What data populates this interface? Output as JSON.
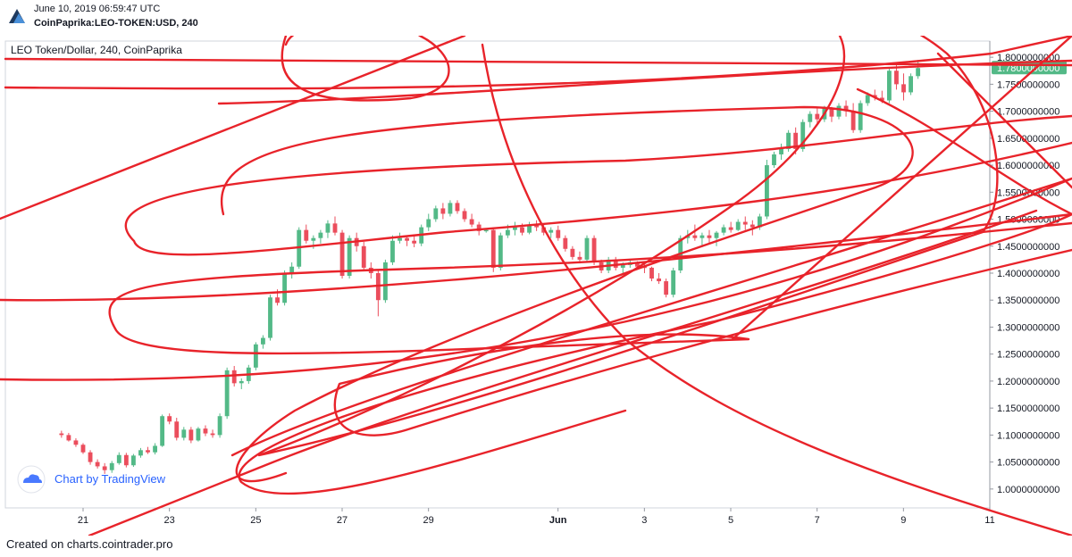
{
  "header": {
    "timestamp": "June 10, 2019 06:59:47 UTC",
    "symbol": "CoinPaprika:LEO-TOKEN:USD, 240"
  },
  "footer": {
    "credit": "Created on charts.cointrader.pro"
  },
  "watermark": {
    "label": "Chart by TradingView"
  },
  "colors": {
    "up": "#53b987",
    "down": "#eb4d5c",
    "scribble": "#e8232a",
    "price_tag": "#53b987",
    "axis": "#9598a1",
    "grid_border": "#d1d4dc"
  },
  "chart_data": {
    "type": "candlestick",
    "title": "LEO Token/Dollar, 240, CoinPaprika",
    "xlabel": "",
    "ylabel": "",
    "ylim": [
      0.965,
      1.83
    ],
    "x_range_days": [
      19.2,
      42.0
    ],
    "y_ticks": [
      "1.8000000000",
      "1.7500000000",
      "1.7000000000",
      "1.6500000000",
      "1.6000000000",
      "1.5500000000",
      "1.5000000000",
      "1.4500000000",
      "1.4000000000",
      "1.3500000000",
      "1.3000000000",
      "1.2500000000",
      "1.2000000000",
      "1.1500000000",
      "1.1000000000",
      "1.0500000000",
      "1.0000000000"
    ],
    "x_ticks": [
      {
        "label": "21",
        "day": 21
      },
      {
        "label": "23",
        "day": 23
      },
      {
        "label": "25",
        "day": 25
      },
      {
        "label": "27",
        "day": 27
      },
      {
        "label": "29",
        "day": 29
      },
      {
        "label": "Jun",
        "day": 32
      },
      {
        "label": "3",
        "day": 34
      },
      {
        "label": "5",
        "day": 36
      },
      {
        "label": "7",
        "day": 38
      },
      {
        "label": "9",
        "day": 40
      },
      {
        "label": "11",
        "day": 42
      }
    ],
    "last_price": "1.7800000000",
    "last_price_value": 1.78,
    "grid": false,
    "candles_start_day": 20.5,
    "candle_interval_days": 0.1667,
    "ohlc": [
      [
        1.103,
        1.108,
        1.095,
        1.1
      ],
      [
        1.1,
        1.104,
        1.088,
        1.09
      ],
      [
        1.09,
        1.094,
        1.078,
        1.082
      ],
      [
        1.082,
        1.085,
        1.065,
        1.068
      ],
      [
        1.068,
        1.072,
        1.045,
        1.05
      ],
      [
        1.05,
        1.055,
        1.038,
        1.042
      ],
      [
        1.042,
        1.048,
        1.028,
        1.035
      ],
      [
        1.035,
        1.052,
        1.03,
        1.048
      ],
      [
        1.048,
        1.068,
        1.045,
        1.063
      ],
      [
        1.063,
        1.067,
        1.04,
        1.044
      ],
      [
        1.044,
        1.065,
        1.041,
        1.062
      ],
      [
        1.062,
        1.076,
        1.058,
        1.072
      ],
      [
        1.072,
        1.078,
        1.065,
        1.068
      ],
      [
        1.068,
        1.085,
        1.064,
        1.08
      ],
      [
        1.08,
        1.138,
        1.078,
        1.135
      ],
      [
        1.135,
        1.14,
        1.12,
        1.125
      ],
      [
        1.125,
        1.132,
        1.09,
        1.095
      ],
      [
        1.095,
        1.115,
        1.09,
        1.11
      ],
      [
        1.11,
        1.115,
        1.085,
        1.09
      ],
      [
        1.09,
        1.115,
        1.088,
        1.112
      ],
      [
        1.112,
        1.118,
        1.098,
        1.103
      ],
      [
        1.103,
        1.11,
        1.095,
        1.1
      ],
      [
        1.1,
        1.14,
        1.095,
        1.135
      ],
      [
        1.135,
        1.225,
        1.13,
        1.22
      ],
      [
        1.22,
        1.228,
        1.19,
        1.196
      ],
      [
        1.196,
        1.205,
        1.185,
        1.2
      ],
      [
        1.2,
        1.23,
        1.195,
        1.225
      ],
      [
        1.225,
        1.272,
        1.22,
        1.268
      ],
      [
        1.268,
        1.285,
        1.26,
        1.28
      ],
      [
        1.28,
        1.36,
        1.275,
        1.355
      ],
      [
        1.355,
        1.37,
        1.34,
        1.345
      ],
      [
        1.345,
        1.405,
        1.34,
        1.4
      ],
      [
        1.4,
        1.42,
        1.39,
        1.412
      ],
      [
        1.412,
        1.485,
        1.408,
        1.48
      ],
      [
        1.48,
        1.49,
        1.455,
        1.46
      ],
      [
        1.46,
        1.47,
        1.445,
        1.465
      ],
      [
        1.465,
        1.48,
        1.455,
        1.475
      ],
      [
        1.475,
        1.498,
        1.465,
        1.492
      ],
      [
        1.492,
        1.505,
        1.47,
        1.475
      ],
      [
        1.475,
        1.48,
        1.39,
        1.395
      ],
      [
        1.395,
        1.47,
        1.39,
        1.465
      ],
      [
        1.465,
        1.475,
        1.44,
        1.45
      ],
      [
        1.45,
        1.458,
        1.405,
        1.41
      ],
      [
        1.41,
        1.42,
        1.39,
        1.4
      ],
      [
        1.4,
        1.405,
        1.32,
        1.35
      ],
      [
        1.35,
        1.425,
        1.345,
        1.42
      ],
      [
        1.42,
        1.47,
        1.415,
        1.46
      ],
      [
        1.46,
        1.475,
        1.455,
        1.465
      ],
      [
        1.465,
        1.47,
        1.45,
        1.46
      ],
      [
        1.46,
        1.468,
        1.448,
        1.455
      ],
      [
        1.455,
        1.49,
        1.45,
        1.485
      ],
      [
        1.485,
        1.51,
        1.478,
        1.5
      ],
      [
        1.5,
        1.525,
        1.495,
        1.52
      ],
      [
        1.52,
        1.53,
        1.5,
        1.51
      ],
      [
        1.51,
        1.535,
        1.505,
        1.53
      ],
      [
        1.53,
        1.535,
        1.51,
        1.515
      ],
      [
        1.515,
        1.52,
        1.495,
        1.5
      ],
      [
        1.5,
        1.51,
        1.485,
        1.49
      ],
      [
        1.49,
        1.495,
        1.47,
        1.478
      ],
      [
        1.478,
        1.482,
        1.475,
        1.48
      ],
      [
        1.48,
        1.485,
        1.402,
        1.41
      ],
      [
        1.41,
        1.475,
        1.405,
        1.47
      ],
      [
        1.47,
        1.49,
        1.465,
        1.48
      ],
      [
        1.48,
        1.495,
        1.47,
        1.485
      ],
      [
        1.485,
        1.492,
        1.47,
        1.475
      ],
      [
        1.475,
        1.495,
        1.472,
        1.49
      ],
      [
        1.49,
        1.498,
        1.478,
        1.485
      ],
      [
        1.485,
        1.49,
        1.47,
        1.475
      ],
      [
        1.475,
        1.485,
        1.465,
        1.48
      ],
      [
        1.48,
        1.488,
        1.46,
        1.465
      ],
      [
        1.465,
        1.47,
        1.44,
        1.445
      ],
      [
        1.445,
        1.45,
        1.425,
        1.43
      ],
      [
        1.43,
        1.44,
        1.418,
        1.425
      ],
      [
        1.425,
        1.47,
        1.42,
        1.465
      ],
      [
        1.465,
        1.47,
        1.415,
        1.42
      ],
      [
        1.42,
        1.425,
        1.4,
        1.405
      ],
      [
        1.405,
        1.43,
        1.4,
        1.425
      ],
      [
        1.425,
        1.43,
        1.405,
        1.41
      ],
      [
        1.41,
        1.42,
        1.4,
        1.415
      ],
      [
        1.415,
        1.425,
        1.41,
        1.42
      ],
      [
        1.42,
        1.422,
        1.41,
        1.412
      ],
      [
        1.412,
        1.418,
        1.4,
        1.41
      ],
      [
        1.41,
        1.412,
        1.385,
        1.39
      ],
      [
        1.39,
        1.4,
        1.38,
        1.385
      ],
      [
        1.385,
        1.39,
        1.355,
        1.36
      ],
      [
        1.36,
        1.41,
        1.355,
        1.405
      ],
      [
        1.405,
        1.47,
        1.4,
        1.465
      ],
      [
        1.465,
        1.48,
        1.455,
        1.47
      ],
      [
        1.47,
        1.49,
        1.46,
        1.465
      ],
      [
        1.465,
        1.475,
        1.448,
        1.47
      ],
      [
        1.47,
        1.48,
        1.455,
        1.465
      ],
      [
        1.465,
        1.478,
        1.45,
        1.475
      ],
      [
        1.475,
        1.49,
        1.47,
        1.485
      ],
      [
        1.485,
        1.495,
        1.475,
        1.48
      ],
      [
        1.48,
        1.5,
        1.478,
        1.495
      ],
      [
        1.495,
        1.505,
        1.48,
        1.49
      ],
      [
        1.49,
        1.498,
        1.47,
        1.485
      ],
      [
        1.485,
        1.51,
        1.48,
        1.505
      ],
      [
        1.505,
        1.61,
        1.5,
        1.6
      ],
      [
        1.6,
        1.625,
        1.595,
        1.62
      ],
      [
        1.62,
        1.64,
        1.61,
        1.63
      ],
      [
        1.63,
        1.665,
        1.625,
        1.66
      ],
      [
        1.66,
        1.67,
        1.62,
        1.63
      ],
      [
        1.63,
        1.685,
        1.625,
        1.68
      ],
      [
        1.68,
        1.7,
        1.67,
        1.695
      ],
      [
        1.695,
        1.705,
        1.675,
        1.685
      ],
      [
        1.685,
        1.71,
        1.68,
        1.705
      ],
      [
        1.705,
        1.708,
        1.68,
        1.69
      ],
      [
        1.69,
        1.715,
        1.685,
        1.71
      ],
      [
        1.71,
        1.72,
        1.69,
        1.7
      ],
      [
        1.7,
        1.715,
        1.66,
        1.665
      ],
      [
        1.665,
        1.72,
        1.66,
        1.715
      ],
      [
        1.715,
        1.735,
        1.71,
        1.73
      ],
      [
        1.73,
        1.74,
        1.72,
        1.725
      ],
      [
        1.725,
        1.738,
        1.715,
        1.72
      ],
      [
        1.72,
        1.78,
        1.715,
        1.775
      ],
      [
        1.775,
        1.79,
        1.74,
        1.75
      ],
      [
        1.75,
        1.77,
        1.72,
        1.735
      ],
      [
        1.735,
        1.77,
        1.73,
        1.765
      ],
      [
        1.765,
        1.795,
        1.76,
        1.78
      ]
    ]
  }
}
